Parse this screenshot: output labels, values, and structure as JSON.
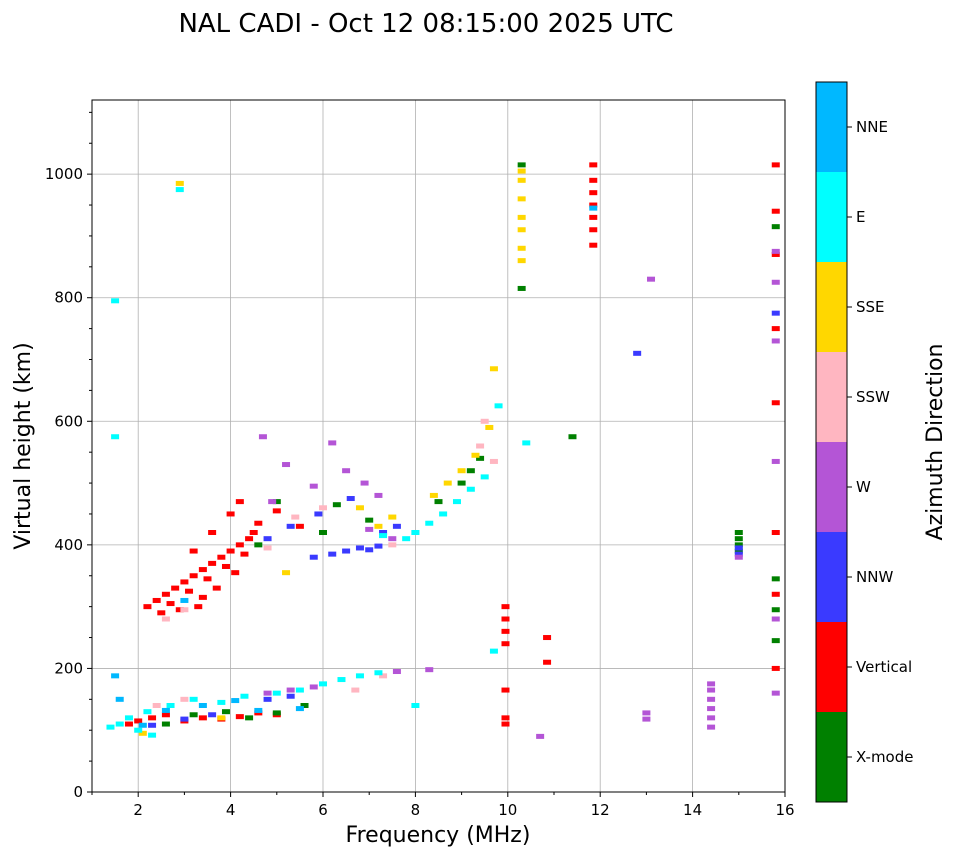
{
  "chart_data": {
    "type": "scatter",
    "title": "NAL CADI - Oct 12 08:15:00 2025 UTC",
    "xlabel": "Frequency (MHz)",
    "ylabel": "Virtual height (km)",
    "xlim": [
      1,
      16
    ],
    "ylim": [
      0,
      1120
    ],
    "xticks": [
      "2",
      "4",
      "6",
      "8",
      "10",
      "12",
      "14",
      "16"
    ],
    "yticks": [
      "0",
      "200",
      "400",
      "600",
      "800",
      "1000"
    ],
    "grid": true,
    "colorbar": {
      "label": "Azimuth Direction",
      "categories": [
        {
          "name": "X-mode",
          "color": "#008000"
        },
        {
          "name": "Vertical",
          "color": "#ff0000"
        },
        {
          "name": "NNW",
          "color": "#3a3aff"
        },
        {
          "name": "W",
          "color": "#b455d6"
        },
        {
          "name": "SSW",
          "color": "#ffb6c1"
        },
        {
          "name": "SSE",
          "color": "#ffd700"
        },
        {
          "name": "E",
          "color": "#00ffff"
        },
        {
          "name": "NNE",
          "color": "#00b8ff"
        }
      ]
    },
    "series": [
      {
        "category": "Vertical",
        "points": [
          [
            2.2,
            300
          ],
          [
            2.4,
            310
          ],
          [
            2.6,
            320
          ],
          [
            2.8,
            330
          ],
          [
            3.0,
            340
          ],
          [
            3.2,
            350
          ],
          [
            3.4,
            360
          ],
          [
            3.6,
            370
          ],
          [
            3.8,
            380
          ],
          [
            4.0,
            390
          ],
          [
            4.2,
            400
          ],
          [
            4.4,
            410
          ],
          [
            2.5,
            290
          ],
          [
            2.7,
            305
          ],
          [
            3.1,
            325
          ],
          [
            3.5,
            345
          ],
          [
            3.9,
            365
          ],
          [
            4.3,
            385
          ],
          [
            3.3,
            300
          ],
          [
            3.7,
            330
          ],
          [
            4.1,
            355
          ],
          [
            2.9,
            295
          ],
          [
            3.4,
            315
          ],
          [
            4.5,
            420
          ],
          [
            4.0,
            450
          ],
          [
            4.2,
            470
          ],
          [
            4.6,
            435
          ],
          [
            5.0,
            455
          ],
          [
            5.5,
            430
          ],
          [
            3.6,
            420
          ],
          [
            3.2,
            390
          ],
          [
            1.8,
            110
          ],
          [
            2.0,
            115
          ],
          [
            2.3,
            120
          ],
          [
            2.6,
            125
          ],
          [
            3.0,
            115
          ],
          [
            3.4,
            120
          ],
          [
            3.8,
            118
          ],
          [
            4.2,
            122
          ],
          [
            4.6,
            128
          ],
          [
            5.0,
            125
          ],
          [
            9.95,
            300
          ],
          [
            9.95,
            280
          ],
          [
            9.95,
            260
          ],
          [
            9.95,
            240
          ],
          [
            9.95,
            165
          ],
          [
            9.95,
            120
          ],
          [
            9.95,
            110
          ],
          [
            10.85,
            250
          ],
          [
            10.85,
            210
          ],
          [
            11.85,
            1015
          ],
          [
            11.85,
            990
          ],
          [
            11.85,
            970
          ],
          [
            11.85,
            950
          ],
          [
            11.85,
            930
          ],
          [
            11.85,
            910
          ],
          [
            11.85,
            885
          ],
          [
            15.8,
            1015
          ],
          [
            15.8,
            940
          ],
          [
            15.8,
            870
          ],
          [
            15.8,
            750
          ],
          [
            15.8,
            630
          ],
          [
            15.8,
            420
          ],
          [
            15.8,
            320
          ],
          [
            15.8,
            200
          ]
        ]
      },
      {
        "category": "X-mode",
        "points": [
          [
            2.6,
            110
          ],
          [
            3.2,
            125
          ],
          [
            3.9,
            130
          ],
          [
            4.4,
            120
          ],
          [
            5.0,
            128
          ],
          [
            5.6,
            140
          ],
          [
            5.0,
            470
          ],
          [
            4.6,
            400
          ],
          [
            6.0,
            420
          ],
          [
            6.3,
            465
          ],
          [
            7.0,
            440
          ],
          [
            8.5,
            470
          ],
          [
            9.0,
            500
          ],
          [
            9.2,
            520
          ],
          [
            9.4,
            540
          ],
          [
            10.3,
            1015
          ],
          [
            10.3,
            815
          ],
          [
            11.4,
            575
          ],
          [
            15.0,
            420
          ],
          [
            15.0,
            410
          ],
          [
            15.0,
            400
          ],
          [
            15.0,
            390
          ],
          [
            15.8,
            915
          ],
          [
            15.8,
            345
          ],
          [
            15.8,
            295
          ],
          [
            15.8,
            245
          ]
        ]
      },
      {
        "category": "NNW",
        "points": [
          [
            6.5,
            390
          ],
          [
            6.8,
            395
          ],
          [
            7.0,
            392
          ],
          [
            7.2,
            398
          ],
          [
            6.2,
            385
          ],
          [
            5.8,
            380
          ],
          [
            4.8,
            410
          ],
          [
            5.3,
            430
          ],
          [
            5.9,
            450
          ],
          [
            6.6,
            475
          ],
          [
            7.3,
            420
          ],
          [
            7.6,
            430
          ],
          [
            2.3,
            108
          ],
          [
            3.0,
            118
          ],
          [
            3.6,
            125
          ],
          [
            4.8,
            150
          ],
          [
            5.3,
            155
          ],
          [
            12.8,
            710
          ],
          [
            15.0,
            395
          ],
          [
            15.0,
            385
          ],
          [
            15.8,
            775
          ]
        ]
      },
      {
        "category": "W",
        "points": [
          [
            4.7,
            575
          ],
          [
            5.2,
            530
          ],
          [
            6.2,
            565
          ],
          [
            6.5,
            520
          ],
          [
            6.9,
            500
          ],
          [
            7.2,
            480
          ],
          [
            5.8,
            495
          ],
          [
            4.9,
            470
          ],
          [
            7.5,
            410
          ],
          [
            7.0,
            425
          ],
          [
            4.8,
            160
          ],
          [
            5.3,
            165
          ],
          [
            5.8,
            170
          ],
          [
            7.6,
            195
          ],
          [
            8.3,
            198
          ],
          [
            10.7,
            90
          ],
          [
            13.1,
            830
          ],
          [
            13.0,
            128
          ],
          [
            13.0,
            118
          ],
          [
            14.4,
            175
          ],
          [
            14.4,
            165
          ],
          [
            14.4,
            150
          ],
          [
            14.4,
            135
          ],
          [
            14.4,
            120
          ],
          [
            14.4,
            105
          ],
          [
            15.0,
            380
          ],
          [
            15.8,
            875
          ],
          [
            15.8,
            825
          ],
          [
            15.8,
            730
          ],
          [
            15.8,
            535
          ],
          [
            15.8,
            280
          ],
          [
            15.8,
            160
          ]
        ]
      },
      {
        "category": "SSW",
        "points": [
          [
            2.6,
            280
          ],
          [
            3.0,
            295
          ],
          [
            4.8,
            395
          ],
          [
            5.4,
            445
          ],
          [
            6.0,
            460
          ],
          [
            7.5,
            400
          ],
          [
            8.0,
            420
          ],
          [
            9.4,
            560
          ],
          [
            9.5,
            600
          ],
          [
            9.7,
            535
          ],
          [
            2.4,
            140
          ],
          [
            3.0,
            150
          ],
          [
            6.7,
            165
          ],
          [
            7.3,
            188
          ]
        ]
      },
      {
        "category": "SSE",
        "points": [
          [
            2.9,
            985
          ],
          [
            5.2,
            355
          ],
          [
            6.8,
            460
          ],
          [
            7.2,
            430
          ],
          [
            7.5,
            445
          ],
          [
            8.4,
            480
          ],
          [
            8.7,
            500
          ],
          [
            9.0,
            520
          ],
          [
            9.3,
            545
          ],
          [
            9.6,
            590
          ],
          [
            9.7,
            685
          ],
          [
            10.3,
            1005
          ],
          [
            10.3,
            990
          ],
          [
            10.3,
            960
          ],
          [
            10.3,
            930
          ],
          [
            10.3,
            910
          ],
          [
            10.3,
            880
          ],
          [
            10.3,
            860
          ],
          [
            2.1,
            95
          ],
          [
            3.8,
            120
          ]
        ]
      },
      {
        "category": "E",
        "points": [
          [
            1.5,
            795
          ],
          [
            1.5,
            575
          ],
          [
            2.9,
            975
          ],
          [
            8.0,
            420
          ],
          [
            8.3,
            435
          ],
          [
            8.6,
            450
          ],
          [
            8.9,
            470
          ],
          [
            9.2,
            490
          ],
          [
            9.5,
            510
          ],
          [
            7.3,
            415
          ],
          [
            7.8,
            410
          ],
          [
            9.8,
            625
          ],
          [
            10.4,
            565
          ],
          [
            9.7,
            228
          ],
          [
            1.6,
            110
          ],
          [
            1.8,
            120
          ],
          [
            2.2,
            130
          ],
          [
            2.7,
            140
          ],
          [
            3.2,
            150
          ],
          [
            3.8,
            145
          ],
          [
            4.3,
            155
          ],
          [
            5.0,
            160
          ],
          [
            5.5,
            165
          ],
          [
            6.0,
            175
          ],
          [
            6.4,
            182
          ],
          [
            6.8,
            188
          ],
          [
            7.2,
            193
          ],
          [
            8.0,
            140
          ],
          [
            1.4,
            105
          ],
          [
            2.0,
            100
          ],
          [
            2.3,
            92
          ]
        ]
      },
      {
        "category": "NNE",
        "points": [
          [
            2.1,
            108
          ],
          [
            2.6,
            132
          ],
          [
            3.4,
            140
          ],
          [
            4.1,
            148
          ],
          [
            4.6,
            132
          ],
          [
            5.5,
            135
          ],
          [
            11.85,
            945
          ],
          [
            1.5,
            188
          ],
          [
            1.6,
            150
          ],
          [
            3.0,
            310
          ]
        ]
      }
    ]
  }
}
